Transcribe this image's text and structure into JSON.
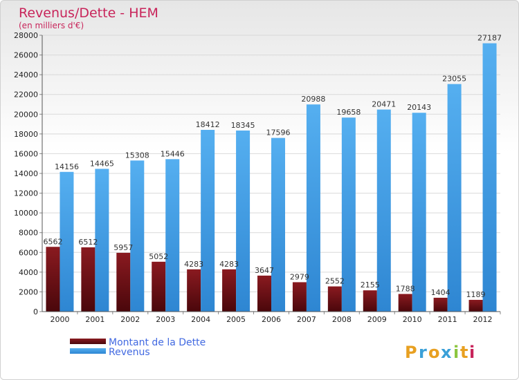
{
  "chart_data": {
    "type": "bar",
    "title": "Revenus/Dette - HEM",
    "subtitle": "(en milliers d'€)",
    "categories": [
      "2000",
      "2001",
      "2002",
      "2003",
      "2004",
      "2005",
      "2006",
      "2007",
      "2008",
      "2009",
      "2010",
      "2011",
      "2012"
    ],
    "series": [
      {
        "name": "Montant de la Dette",
        "color": "#6b0f14",
        "values": [
          6562,
          6512,
          5957,
          5052,
          4283,
          4283,
          3647,
          2979,
          2552,
          2155,
          1788,
          1404,
          1189
        ]
      },
      {
        "name": "Revenus",
        "color": "#3d9ae6",
        "values": [
          14156,
          14465,
          15308,
          15446,
          18412,
          18345,
          17596,
          20988,
          19658,
          20471,
          20143,
          23055,
          27187
        ]
      }
    ],
    "ylim": [
      0,
      28000
    ],
    "yticks": [
      0,
      2000,
      4000,
      6000,
      8000,
      10000,
      12000,
      14000,
      16000,
      18000,
      20000,
      22000,
      24000,
      26000,
      28000
    ],
    "grid": true,
    "legend_position": "bottom-left"
  },
  "brand": {
    "letters": [
      "P",
      "r",
      "o",
      "x",
      "i",
      "t",
      "i"
    ],
    "colors": [
      "#e8a021",
      "#3aa0d8",
      "#e8a021",
      "#3aa0d8",
      "#8cc63f",
      "#e8a021",
      "#c8245a"
    ]
  }
}
